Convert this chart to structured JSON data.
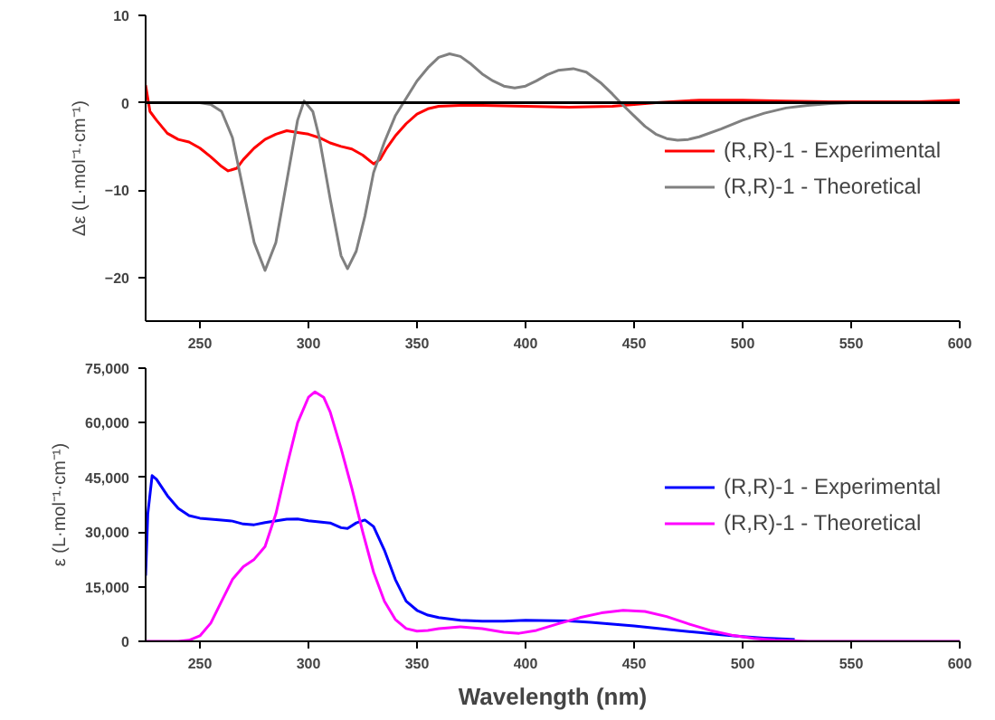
{
  "chart_data": [
    {
      "type": "line",
      "ylabel": "Δε (L·mol⁻¹·cm⁻¹)",
      "xlim": [
        225,
        600
      ],
      "xticks": [
        250,
        300,
        350,
        400,
        450,
        500,
        550,
        600
      ],
      "ylim": [
        -25,
        10
      ],
      "yticks": [
        -20,
        -10,
        0,
        10
      ],
      "grid": false,
      "legend": "right",
      "line_style": "solid",
      "marker": "none",
      "ref_lines": [
        {
          "axis": "y",
          "value": 0,
          "label": null,
          "color": "#000000"
        }
      ],
      "series": [
        {
          "name": "(R,R)-1 - Experimental",
          "color": "#ff0000",
          "x": [
            225,
            227,
            230,
            235,
            240,
            245,
            250,
            255,
            260,
            263,
            267,
            270,
            275,
            280,
            285,
            290,
            295,
            300,
            305,
            310,
            315,
            320,
            325,
            330,
            333,
            336,
            340,
            345,
            350,
            355,
            360,
            370,
            380,
            400,
            420,
            440,
            460,
            480,
            500,
            520,
            540,
            560,
            580,
            600
          ],
          "values": [
            2,
            -1,
            -2,
            -3.5,
            -4.2,
            -4.5,
            -5.2,
            -6.2,
            -7.3,
            -7.8,
            -7.5,
            -6.5,
            -5.2,
            -4.2,
            -3.6,
            -3.2,
            -3.4,
            -3.6,
            -4.0,
            -4.6,
            -5.0,
            -5.3,
            -6.0,
            -7.0,
            -6.5,
            -5.2,
            -3.8,
            -2.4,
            -1.3,
            -0.7,
            -0.4,
            -0.3,
            -0.3,
            -0.4,
            -0.5,
            -0.4,
            0,
            0.3,
            0.3,
            0.2,
            0.1,
            0.1,
            0.1,
            0.3
          ]
        },
        {
          "name": "(R,R)-1 - Theoretical",
          "color": "#808080",
          "x": [
            225,
            250,
            255,
            260,
            265,
            270,
            275,
            280,
            285,
            290,
            295,
            298,
            302,
            305,
            310,
            315,
            318,
            322,
            326,
            330,
            335,
            340,
            345,
            350,
            355,
            360,
            365,
            370,
            375,
            380,
            385,
            390,
            395,
            400,
            405,
            410,
            415,
            422,
            428,
            435,
            440,
            445,
            450,
            455,
            460,
            465,
            470,
            475,
            480,
            490,
            500,
            510,
            520,
            530,
            540,
            550,
            600
          ],
          "values": [
            0,
            0,
            -0.2,
            -1,
            -4,
            -10,
            -16,
            -19.2,
            -16,
            -9,
            -2,
            0.2,
            -1,
            -4,
            -11,
            -17.5,
            -19,
            -17,
            -13,
            -8,
            -4.5,
            -1.5,
            0.5,
            2.5,
            4,
            5.2,
            5.6,
            5.3,
            4.4,
            3.3,
            2.5,
            1.9,
            1.7,
            1.9,
            2.5,
            3.2,
            3.7,
            3.9,
            3.5,
            2.2,
            1,
            -0.3,
            -1.5,
            -2.7,
            -3.6,
            -4.1,
            -4.3,
            -4.2,
            -3.9,
            -3.0,
            -2.0,
            -1.2,
            -0.6,
            -0.3,
            -0.1,
            0,
            0
          ]
        }
      ]
    },
    {
      "type": "line",
      "xlabel": "Wavelength (nm)",
      "ylabel": "ε (L·mol⁻¹·cm⁻¹)",
      "xlim": [
        225,
        600
      ],
      "xticks": [
        250,
        300,
        350,
        400,
        450,
        500,
        550,
        600
      ],
      "ylim": [
        0,
        75000
      ],
      "yticks": [
        0,
        {
          "value": 15000,
          "label": "15,000"
        },
        {
          "value": 30000,
          "label": "30,000"
        },
        {
          "value": 45000,
          "label": "45,000"
        },
        {
          "value": 60000,
          "label": "60,000"
        },
        {
          "value": 75000,
          "label": "75,000"
        }
      ],
      "grid": false,
      "legend": "right",
      "line_style": "solid",
      "marker": "none",
      "series": [
        {
          "name": "(R,R)-1 - Experimental",
          "color": "#0000ff",
          "x": [
            225,
            226,
            228,
            230,
            235,
            240,
            245,
            250,
            260,
            265,
            270,
            275,
            280,
            290,
            295,
            300,
            310,
            315,
            318,
            322,
            326,
            330,
            335,
            340,
            345,
            350,
            355,
            360,
            370,
            380,
            390,
            400,
            420,
            430,
            440,
            450,
            460,
            470,
            480,
            490,
            500,
            510,
            520,
            524
          ],
          "values": [
            18000,
            35000,
            45500,
            44500,
            40000,
            36500,
            34500,
            33800,
            33300,
            33000,
            32200,
            32000,
            32600,
            33500,
            33600,
            33100,
            32500,
            31200,
            31000,
            32500,
            33300,
            31500,
            25000,
            17000,
            11000,
            8500,
            7200,
            6500,
            5800,
            5500,
            5500,
            5800,
            5600,
            5200,
            4700,
            4200,
            3600,
            3000,
            2400,
            1800,
            1300,
            900,
            600,
            500
          ]
        },
        {
          "name": "(R,R)-1 - Theoretical",
          "color": "#ff00ff",
          "x": [
            225,
            240,
            245,
            250,
            255,
            260,
            265,
            270,
            275,
            280,
            285,
            290,
            295,
            300,
            303,
            307,
            310,
            315,
            320,
            325,
            330,
            335,
            340,
            345,
            350,
            355,
            360,
            370,
            380,
            390,
            397,
            405,
            415,
            425,
            435,
            445,
            455,
            465,
            475,
            485,
            495,
            505,
            515,
            530,
            600
          ],
          "values": [
            0,
            0,
            300,
            1500,
            5000,
            11000,
            17000,
            20500,
            22500,
            26000,
            35000,
            48000,
            60000,
            67000,
            68500,
            67000,
            63000,
            53000,
            42000,
            30000,
            19000,
            11000,
            6000,
            3500,
            2800,
            3000,
            3500,
            4000,
            3500,
            2500,
            2200,
            3000,
            4800,
            6500,
            7800,
            8500,
            8200,
            6800,
            4800,
            3000,
            1700,
            800,
            300,
            0,
            0
          ]
        }
      ]
    }
  ]
}
